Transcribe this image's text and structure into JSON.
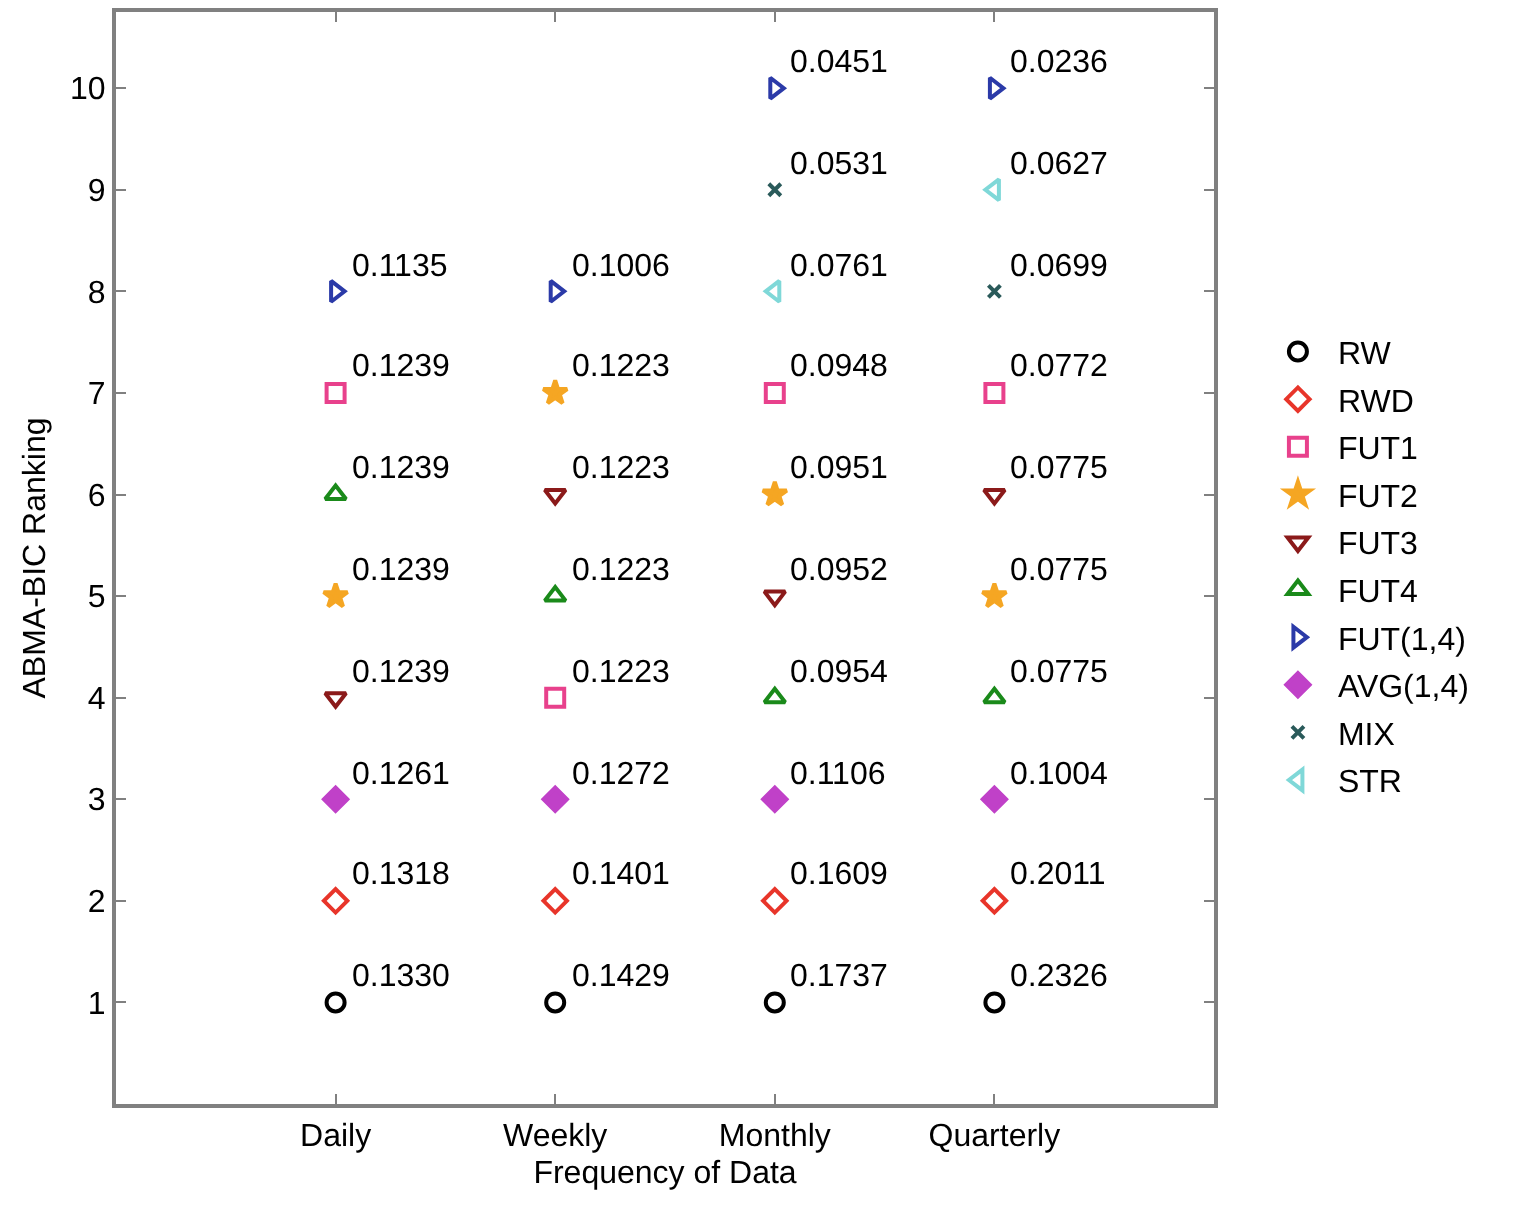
{
  "chart_data": {
    "type": "scatter",
    "xlabel": "Frequency of Data",
    "ylabel": "ABMA-BIC Ranking",
    "categories": [
      "Daily",
      "Weekly",
      "Monthly",
      "Quarterly"
    ],
    "ylim": [
      0,
      10.75
    ],
    "yticks": [
      1,
      2,
      3,
      4,
      5,
      6,
      7,
      8,
      9,
      10
    ],
    "grid": false,
    "legend": "right",
    "series": [
      {
        "name": "RW",
        "color": "#000000",
        "marker": "circle-open",
        "values": [
          1,
          1,
          1,
          1
        ]
      },
      {
        "name": "RWD",
        "color": "#e8352a",
        "marker": "diamond-open",
        "values": [
          2,
          2,
          2,
          2
        ]
      },
      {
        "name": "FUT1",
        "color": "#e8418c",
        "marker": "square-open",
        "values": [
          7,
          4,
          7,
          7
        ]
      },
      {
        "name": "FUT2",
        "color": "#f5a623",
        "marker": "star",
        "values": [
          5,
          7,
          6,
          5
        ]
      },
      {
        "name": "FUT3",
        "color": "#8b1a1a",
        "marker": "triangle-down-open",
        "values": [
          4,
          6,
          5,
          6
        ]
      },
      {
        "name": "FUT4",
        "color": "#1a8a1a",
        "marker": "triangle-up-open",
        "values": [
          6,
          5,
          4,
          4
        ]
      },
      {
        "name": "FUT(1,4)",
        "color": "#2b3aa8",
        "marker": "triangle-right-open",
        "values": [
          8,
          8,
          10,
          10
        ]
      },
      {
        "name": "AVG(1,4)",
        "color": "#c041c8",
        "marker": "diamond",
        "values": [
          3,
          3,
          3,
          3
        ]
      },
      {
        "name": "MIX",
        "color": "#2a5a5a",
        "marker": "x",
        "values": [
          null,
          null,
          9,
          8
        ]
      },
      {
        "name": "STR",
        "color": "#7fd8d8",
        "marker": "triangle-left-open",
        "values": [
          null,
          null,
          8,
          9
        ]
      }
    ],
    "annotations": [
      {
        "text": "0.1330",
        "x": "Daily",
        "y": 1
      },
      {
        "text": "0.1318",
        "x": "Daily",
        "y": 2
      },
      {
        "text": "0.1261",
        "x": "Daily",
        "y": 3
      },
      {
        "text": "0.1239",
        "x": "Daily",
        "y": 4
      },
      {
        "text": "0.1239",
        "x": "Daily",
        "y": 5
      },
      {
        "text": "0.1239",
        "x": "Daily",
        "y": 6
      },
      {
        "text": "0.1239",
        "x": "Daily",
        "y": 7
      },
      {
        "text": "0.1135",
        "x": "Daily",
        "y": 8
      },
      {
        "text": "0.1429",
        "x": "Weekly",
        "y": 1
      },
      {
        "text": "0.1401",
        "x": "Weekly",
        "y": 2
      },
      {
        "text": "0.1272",
        "x": "Weekly",
        "y": 3
      },
      {
        "text": "0.1223",
        "x": "Weekly",
        "y": 4
      },
      {
        "text": "0.1223",
        "x": "Weekly",
        "y": 5
      },
      {
        "text": "0.1223",
        "x": "Weekly",
        "y": 6
      },
      {
        "text": "0.1223",
        "x": "Weekly",
        "y": 7
      },
      {
        "text": "0.1006",
        "x": "Weekly",
        "y": 8
      },
      {
        "text": "0.1737",
        "x": "Monthly",
        "y": 1
      },
      {
        "text": "0.1609",
        "x": "Monthly",
        "y": 2
      },
      {
        "text": "0.1106",
        "x": "Monthly",
        "y": 3
      },
      {
        "text": "0.0954",
        "x": "Monthly",
        "y": 4
      },
      {
        "text": "0.0952",
        "x": "Monthly",
        "y": 5
      },
      {
        "text": "0.0951",
        "x": "Monthly",
        "y": 6
      },
      {
        "text": "0.0948",
        "x": "Monthly",
        "y": 7
      },
      {
        "text": "0.0761",
        "x": "Monthly",
        "y": 8
      },
      {
        "text": "0.0531",
        "x": "Monthly",
        "y": 9
      },
      {
        "text": "0.0451",
        "x": "Monthly",
        "y": 10
      },
      {
        "text": "0.2326",
        "x": "Quarterly",
        "y": 1
      },
      {
        "text": "0.2011",
        "x": "Quarterly",
        "y": 2
      },
      {
        "text": "0.1004",
        "x": "Quarterly",
        "y": 3
      },
      {
        "text": "0.0775",
        "x": "Quarterly",
        "y": 4
      },
      {
        "text": "0.0775",
        "x": "Quarterly",
        "y": 5
      },
      {
        "text": "0.0775",
        "x": "Quarterly",
        "y": 6
      },
      {
        "text": "0.0772",
        "x": "Quarterly",
        "y": 7
      },
      {
        "text": "0.0699",
        "x": "Quarterly",
        "y": 8
      },
      {
        "text": "0.0627",
        "x": "Quarterly",
        "y": 9
      },
      {
        "text": "0.0236",
        "x": "Quarterly",
        "y": 10
      }
    ]
  }
}
